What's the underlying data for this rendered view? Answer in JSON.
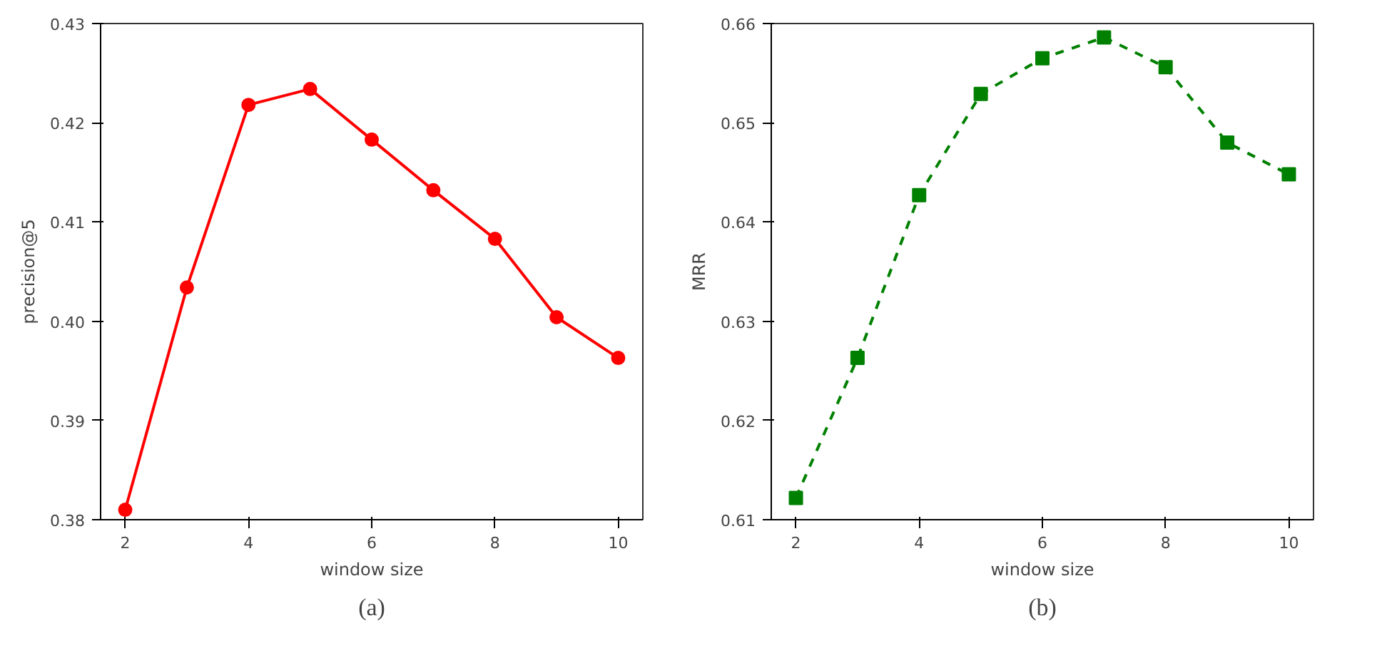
{
  "chart_data": [
    {
      "type": "line",
      "x": [
        2,
        3,
        4,
        5,
        6,
        7,
        8,
        9,
        10
      ],
      "xlabel": "window size",
      "ylabel": "precision@5",
      "annotations": [
        "(a)"
      ],
      "series": [
        {
          "color": "#ff0000",
          "values": [
            0.381,
            0.4034,
            0.4218,
            0.4234,
            0.4183,
            0.4132,
            0.4083,
            0.4004,
            0.3963
          ]
        }
      ],
      "marker": "circle",
      "line_style": "solid",
      "grid": false,
      "xlim": [
        1.6,
        10.4
      ],
      "xticks": [
        2,
        4,
        6,
        8,
        10
      ],
      "ylim": [
        0.38,
        0.43
      ],
      "yticks": [
        {
          "value": 0.38,
          "label": "0.38"
        },
        {
          "value": 0.39,
          "label": "0.39"
        },
        {
          "value": 0.4,
          "label": "0.40"
        },
        {
          "value": 0.41,
          "label": "0.41"
        },
        {
          "value": 0.42,
          "label": "0.42"
        },
        {
          "value": 0.43,
          "label": "0.43"
        }
      ]
    },
    {
      "type": "line",
      "x": [
        2,
        3,
        4,
        5,
        6,
        7,
        8,
        9,
        10
      ],
      "xlabel": "window size",
      "ylabel": "MRR",
      "annotations": [
        "(b)"
      ],
      "series": [
        {
          "color": "#008000",
          "values": [
            0.6122,
            0.6263,
            0.6427,
            0.6529,
            0.6565,
            0.6586,
            0.6556,
            0.648,
            0.6448
          ]
        }
      ],
      "marker": "square",
      "line_style": "dashed",
      "grid": false,
      "xlim": [
        1.6,
        10.4
      ],
      "xticks": [
        2,
        4,
        6,
        8,
        10
      ],
      "ylim": [
        0.61,
        0.66
      ],
      "yticks": [
        {
          "value": 0.61,
          "label": "0.61"
        },
        {
          "value": 0.62,
          "label": "0.62"
        },
        {
          "value": 0.63,
          "label": "0.63"
        },
        {
          "value": 0.64,
          "label": "0.64"
        },
        {
          "value": 0.65,
          "label": "0.65"
        },
        {
          "value": 0.66,
          "label": "0.66"
        }
      ]
    }
  ]
}
